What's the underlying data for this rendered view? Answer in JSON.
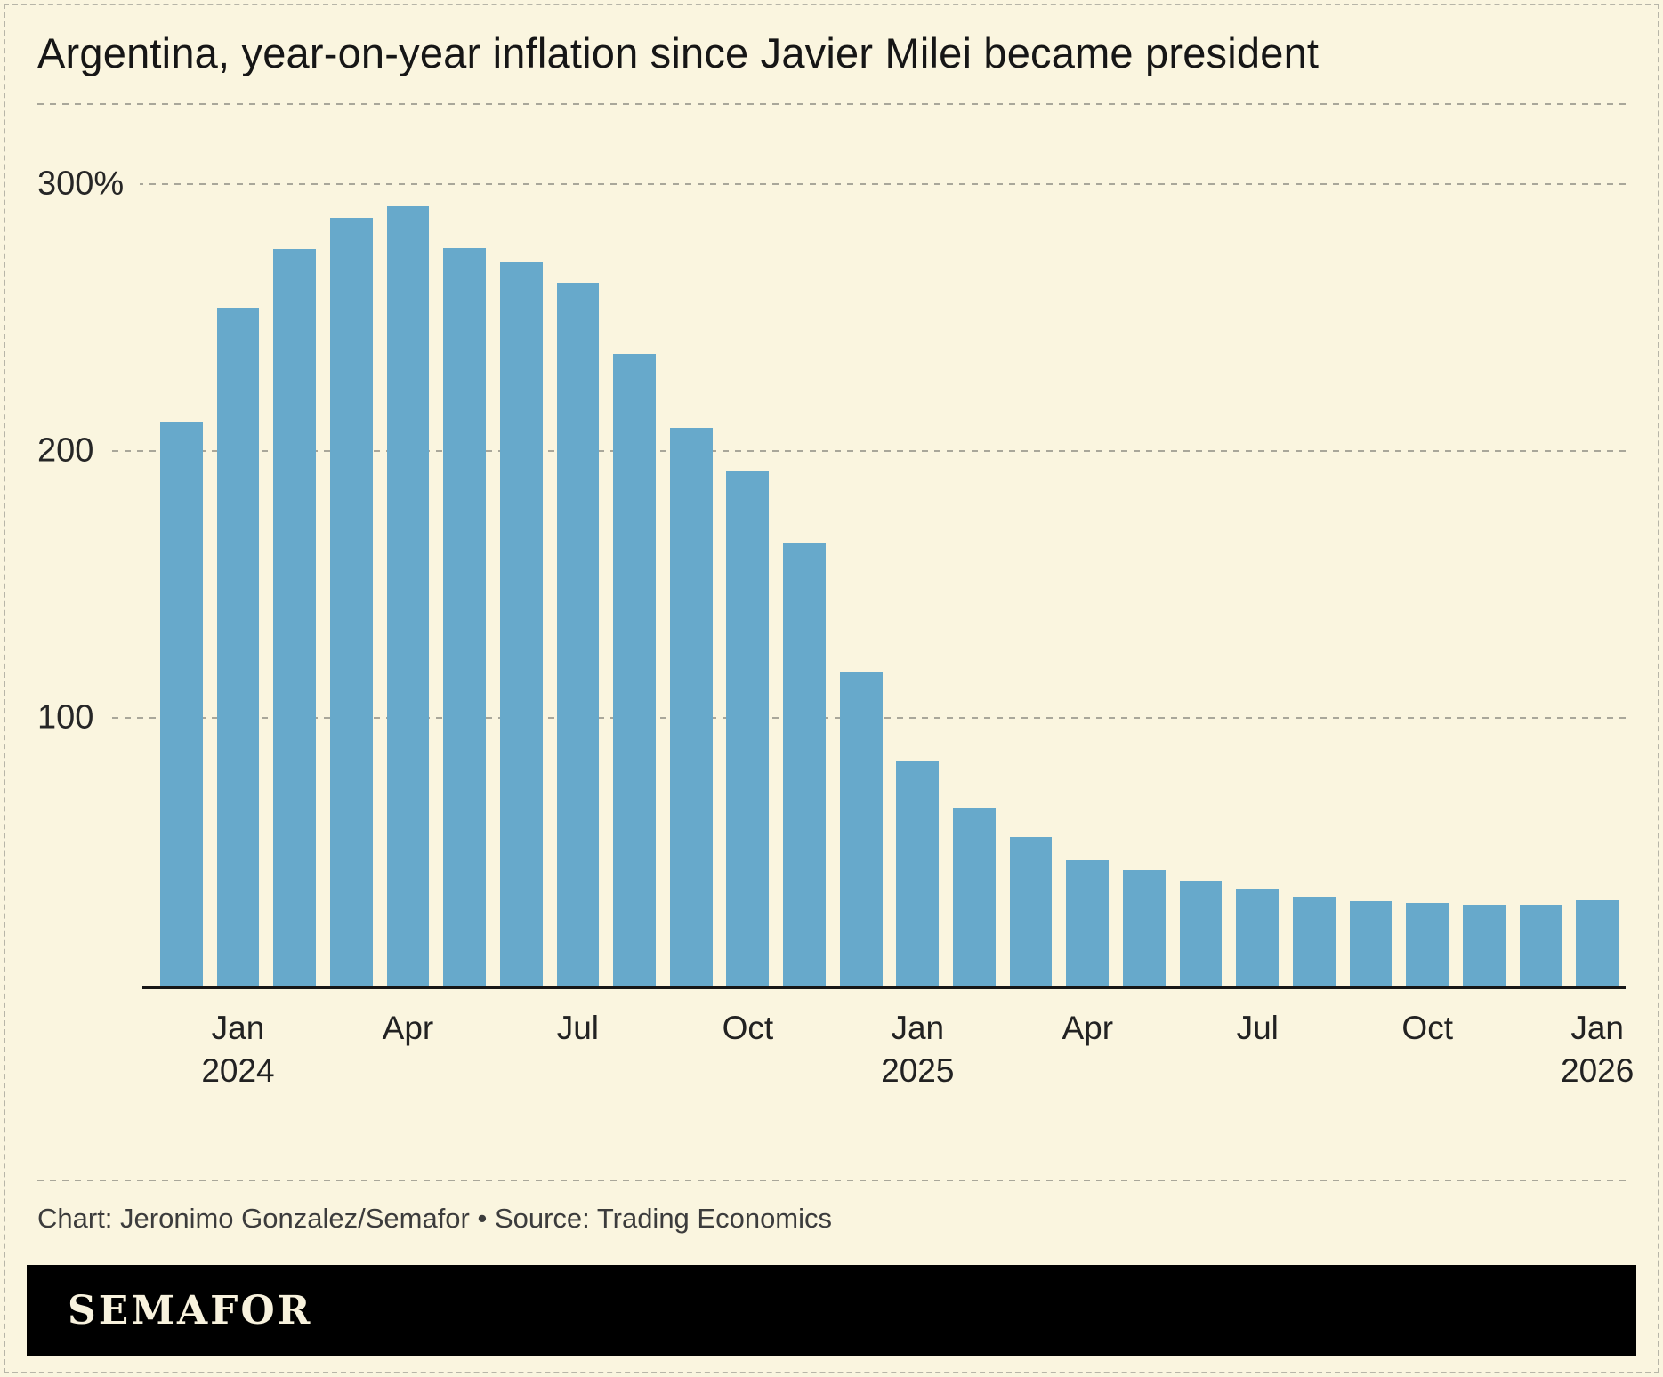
{
  "chart_data": {
    "type": "bar",
    "title": "Argentina, year-on-year inflation since Javier Milei became president",
    "xlabel": "",
    "ylabel": "",
    "ylim": [
      0,
      330
    ],
    "grid": "dashed-horizontal",
    "legend": "none",
    "bar_color": "#67A9CB",
    "background_color": "#FAF5DF",
    "x": [
      "Dec 2023",
      "Jan 2024",
      "Feb 2024",
      "Mar 2024",
      "Apr 2024",
      "May 2024",
      "Jun 2024",
      "Jul 2024",
      "Aug 2024",
      "Sep 2024",
      "Oct 2024",
      "Nov 2024",
      "Dec 2024",
      "Jan 2025",
      "Feb 2025",
      "Mar 2025",
      "Apr 2025",
      "May 2025",
      "Jun 2025",
      "Jul 2025",
      "Aug 2025",
      "Sep 2025",
      "Oct 2025",
      "Nov 2025",
      "Dec 2025",
      "Jan 2026"
    ],
    "values": [
      211.4,
      254.2,
      276.2,
      287.9,
      292.2,
      276.4,
      271.5,
      263.4,
      236.7,
      209.0,
      193.0,
      166.0,
      117.8,
      84.5,
      66.9,
      55.9,
      47.3,
      43.5,
      39.4,
      36.6,
      33.6,
      31.8,
      31.3,
      30.6,
      30.4,
      32.1
    ],
    "yticks": [
      {
        "value": 100,
        "label": "100"
      },
      {
        "value": 200,
        "label": "200"
      },
      {
        "value": 300,
        "label": "300%"
      }
    ],
    "xticks": [
      {
        "index": 1,
        "lines": [
          "Jan",
          "2024"
        ]
      },
      {
        "index": 4,
        "lines": [
          "Apr"
        ]
      },
      {
        "index": 7,
        "lines": [
          "Jul"
        ]
      },
      {
        "index": 10,
        "lines": [
          "Oct"
        ]
      },
      {
        "index": 13,
        "lines": [
          "Jan",
          "2025"
        ]
      },
      {
        "index": 16,
        "lines": [
          "Apr"
        ]
      },
      {
        "index": 19,
        "lines": [
          "Jul"
        ]
      },
      {
        "index": 22,
        "lines": [
          "Oct"
        ]
      },
      {
        "index": 25,
        "lines": [
          "Jan",
          "2026"
        ]
      }
    ]
  },
  "credit": "Chart: Jeronimo Gonzalez/Semafor • Source: Trading Economics",
  "brand": {
    "wordmark": "SEMAFOR"
  }
}
